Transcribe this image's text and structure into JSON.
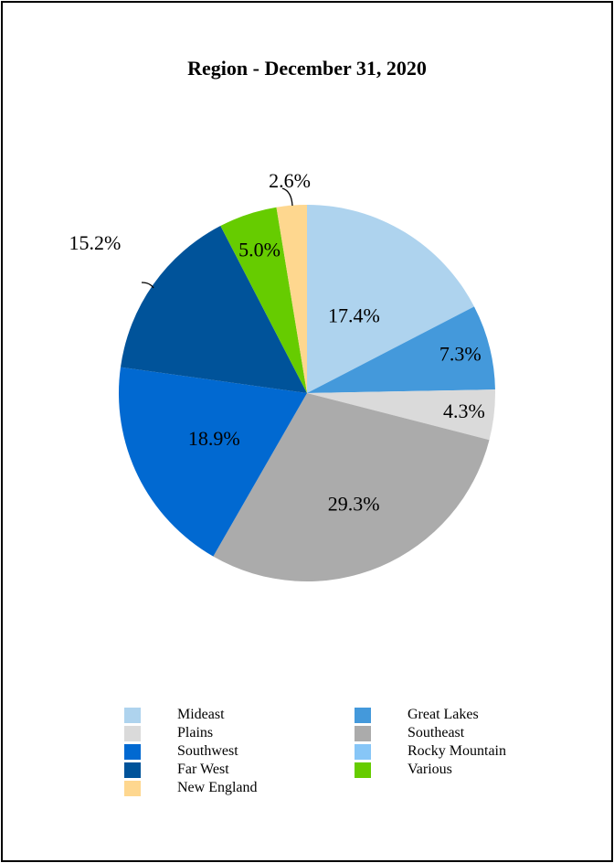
{
  "chart_data": {
    "type": "pie",
    "title": "Region - December 31, 2020",
    "slices": [
      {
        "name": "Mideast",
        "value": 17.4,
        "label": "17.4%",
        "color": "#aed3ee"
      },
      {
        "name": "Great Lakes",
        "value": 7.3,
        "label": "7.3%",
        "color": "#4499db"
      },
      {
        "name": "Plains",
        "value": 4.3,
        "label": "4.3%",
        "color": "#dadada"
      },
      {
        "name": "Southeast",
        "value": 29.3,
        "label": "29.3%",
        "color": "#ababab"
      },
      {
        "name": "Southwest",
        "value": 18.9,
        "label": "18.9%",
        "color": "#0169d1"
      },
      {
        "name": "Far West",
        "value": 15.2,
        "label": "15.2%",
        "color": "#00539a"
      },
      {
        "name": "Various",
        "value": 5.0,
        "label": "5.0%",
        "color": "#66cc00"
      },
      {
        "name": "New England",
        "value": 2.6,
        "label": "2.6%",
        "color": "#fed78f"
      }
    ],
    "legend": [
      {
        "name": "Mideast",
        "color": "#aed3ee"
      },
      {
        "name": "Great Lakes",
        "color": "#4499db"
      },
      {
        "name": "Plains",
        "color": "#dadada"
      },
      {
        "name": "Southeast",
        "color": "#ababab"
      },
      {
        "name": "Southwest",
        "color": "#0169d1"
      },
      {
        "name": "Rocky Mountain",
        "color": "#87c6f7"
      },
      {
        "name": "Far West",
        "color": "#00539a"
      },
      {
        "name": "Various",
        "color": "#66cc00"
      },
      {
        "name": "New England",
        "color": "#fed78f"
      }
    ],
    "legend_position": "bottom"
  }
}
